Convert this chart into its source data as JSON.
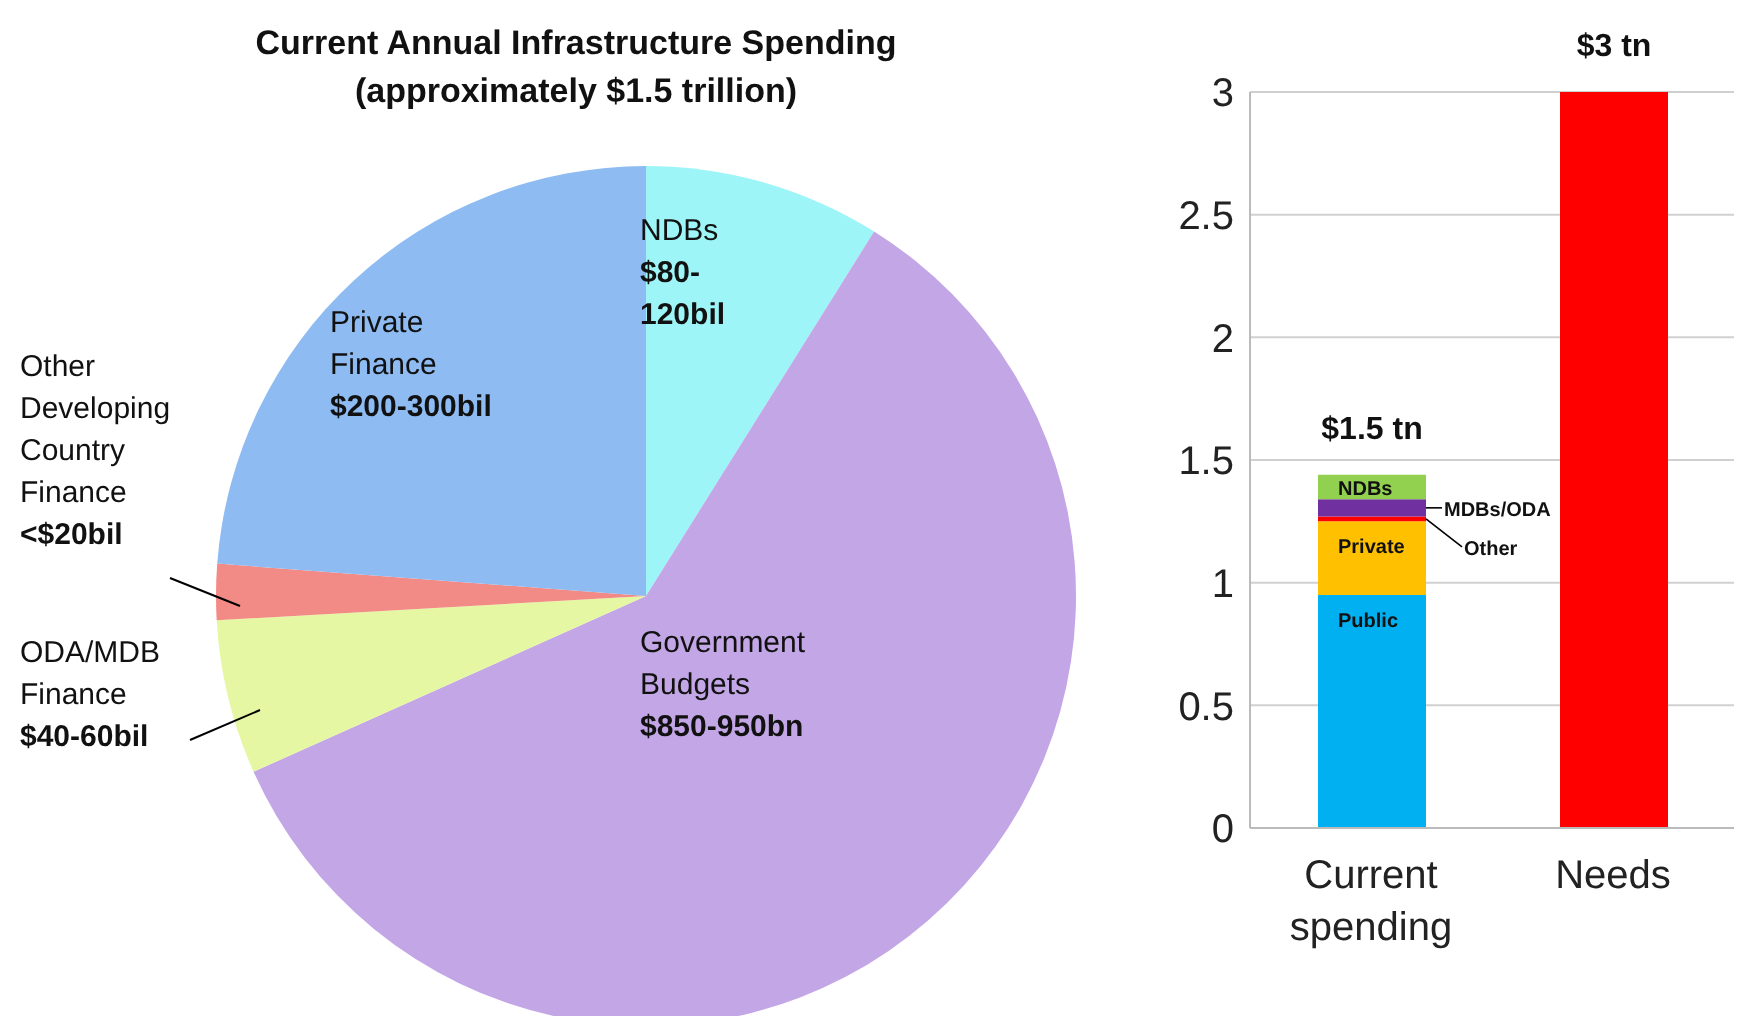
{
  "chart_data": [
    {
      "type": "pie",
      "title": "Current Annual Infrastructure Spending",
      "subtitle": "(approximately $1.5 trillion)",
      "categories": [
        "NDBs",
        "Government Budgets",
        "ODA/MDB Finance",
        "Other Developing Country Finance",
        "Private Finance"
      ],
      "values": [
        8.9,
        59.4,
        5.8,
        2.1,
        23.8
      ],
      "colors": [
        "#9ef5f7",
        "#c3a6e6",
        "#e6f7a3",
        "#f28a86",
        "#8dbbf2"
      ],
      "value_labels": [
        "$80-120bil",
        "$850-950bn",
        "$40-60bil",
        "<$20bil",
        "$200-300bil"
      ]
    },
    {
      "type": "bar",
      "stacked": true,
      "categories": [
        "Current spending",
        "Needs"
      ],
      "series": [
        {
          "name": "Public",
          "color": "#00b0f0",
          "values": [
            0.95,
            null
          ]
        },
        {
          "name": "Private",
          "color": "#ffc000",
          "values": [
            0.3,
            null
          ]
        },
        {
          "name": "Other",
          "color": "#ff0000",
          "values": [
            0.02,
            null
          ]
        },
        {
          "name": "MDBs/ODA",
          "color": "#7030a0",
          "values": [
            0.07,
            null
          ]
        },
        {
          "name": "NDBs",
          "color": "#92d050",
          "values": [
            0.1,
            null
          ]
        },
        {
          "color": "#ff0000",
          "values": [
            null,
            3
          ]
        }
      ],
      "ylim": [
        0,
        3
      ],
      "yticks": [
        0,
        0.5,
        1,
        1.5,
        2,
        2.5,
        3
      ],
      "grid": "y",
      "totals": [
        "$1.5 tn",
        "$3 tn"
      ]
    }
  ]
}
